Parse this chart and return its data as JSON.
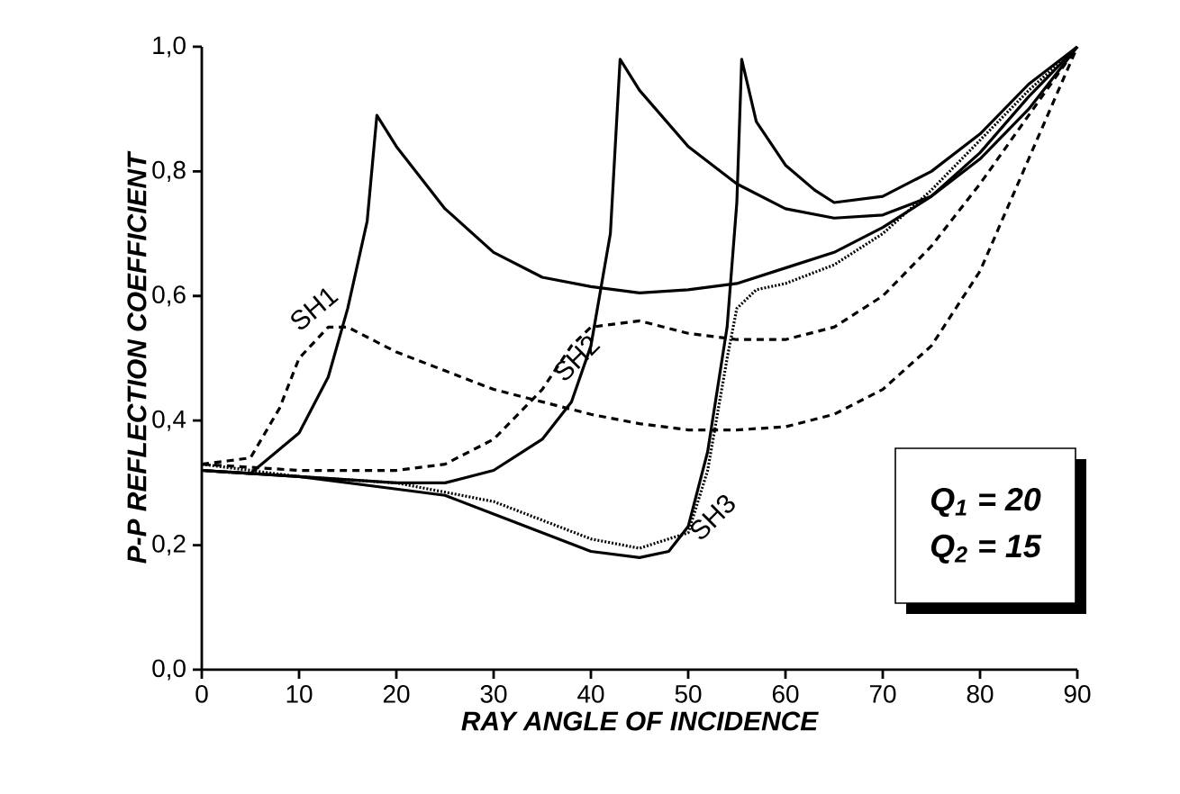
{
  "chart_data": {
    "type": "line",
    "xlabel": "RAY ANGLE OF INCIDENCE",
    "ylabel": "P-P REFLECTION COEFFICIENT",
    "xlim": [
      0,
      90
    ],
    "xticks": [
      0,
      10,
      20,
      30,
      40,
      50,
      60,
      70,
      80,
      90
    ],
    "ylim": [
      0,
      1
    ],
    "yticks": [
      {
        "value": 0,
        "label": "0,0"
      },
      {
        "value": 0.2,
        "label": "0,2"
      },
      {
        "value": 0.4,
        "label": "0,4"
      },
      {
        "value": 0.6,
        "label": "0,6"
      },
      {
        "value": 0.8,
        "label": "0,8"
      },
      {
        "value": 1,
        "label": "1,0"
      }
    ],
    "grid": false,
    "legend": false,
    "marker": "none",
    "series": [
      {
        "name": "SH1",
        "color": "#000000",
        "line_style": "solid",
        "x": [
          0,
          5,
          10,
          13,
          15,
          17,
          18,
          20,
          25,
          30,
          35,
          40,
          45,
          50,
          55,
          60,
          65,
          70,
          75,
          80,
          85,
          90
        ],
        "values": [
          0.32,
          0.315,
          0.38,
          0.47,
          0.58,
          0.72,
          0.89,
          0.84,
          0.74,
          0.67,
          0.63,
          0.615,
          0.605,
          0.61,
          0.62,
          0.645,
          0.67,
          0.71,
          0.76,
          0.83,
          0.92,
          1.0
        ]
      },
      {
        "color": "#000000",
        "line_style": "dashed",
        "x": [
          0,
          5,
          8,
          10,
          13,
          15,
          20,
          25,
          30,
          35,
          40,
          45,
          50,
          55,
          60,
          65,
          70,
          75,
          80,
          85,
          90
        ],
        "values": [
          0.33,
          0.34,
          0.42,
          0.5,
          0.55,
          0.55,
          0.51,
          0.48,
          0.45,
          0.43,
          0.41,
          0.395,
          0.385,
          0.385,
          0.39,
          0.41,
          0.45,
          0.52,
          0.64,
          0.82,
          1.0
        ]
      },
      {
        "name": "SH2",
        "color": "#000000",
        "line_style": "solid",
        "x": [
          0,
          10,
          20,
          25,
          30,
          35,
          38,
          40,
          42,
          43,
          45,
          50,
          55,
          60,
          65,
          70,
          75,
          80,
          85,
          90
        ],
        "values": [
          0.32,
          0.31,
          0.3,
          0.3,
          0.32,
          0.37,
          0.43,
          0.52,
          0.7,
          0.98,
          0.93,
          0.84,
          0.78,
          0.74,
          0.725,
          0.73,
          0.76,
          0.82,
          0.9,
          1.0
        ]
      },
      {
        "color": "#000000",
        "line_style": "dashed",
        "x": [
          0,
          10,
          20,
          25,
          30,
          35,
          38,
          40,
          45,
          50,
          55,
          60,
          65,
          70,
          75,
          80,
          85,
          90
        ],
        "values": [
          0.33,
          0.32,
          0.32,
          0.33,
          0.37,
          0.45,
          0.52,
          0.55,
          0.56,
          0.54,
          0.53,
          0.53,
          0.55,
          0.6,
          0.68,
          0.78,
          0.89,
          1.0
        ]
      },
      {
        "name": "SH3",
        "color": "#000000",
        "line_style": "solid",
        "x": [
          0,
          10,
          20,
          25,
          30,
          35,
          40,
          45,
          48,
          50,
          52,
          54,
          55,
          55.5,
          57,
          60,
          63,
          65,
          70,
          75,
          80,
          85,
          90
        ],
        "values": [
          0.32,
          0.31,
          0.29,
          0.28,
          0.25,
          0.22,
          0.19,
          0.18,
          0.19,
          0.23,
          0.35,
          0.55,
          0.75,
          0.98,
          0.88,
          0.81,
          0.77,
          0.75,
          0.76,
          0.8,
          0.86,
          0.94,
          1.0
        ]
      },
      {
        "color": "#000000",
        "line_style": "dotted",
        "x": [
          0,
          10,
          20,
          30,
          40,
          45,
          50,
          52,
          54,
          55,
          57,
          60,
          65,
          70,
          75,
          80,
          85,
          90
        ],
        "values": [
          0.33,
          0.31,
          0.3,
          0.27,
          0.21,
          0.195,
          0.22,
          0.32,
          0.5,
          0.58,
          0.61,
          0.62,
          0.65,
          0.7,
          0.77,
          0.85,
          0.93,
          1.0
        ]
      }
    ],
    "annotations": [
      "Q$_{1}$ = 20",
      "Q$_{2}$ = 15"
    ]
  }
}
